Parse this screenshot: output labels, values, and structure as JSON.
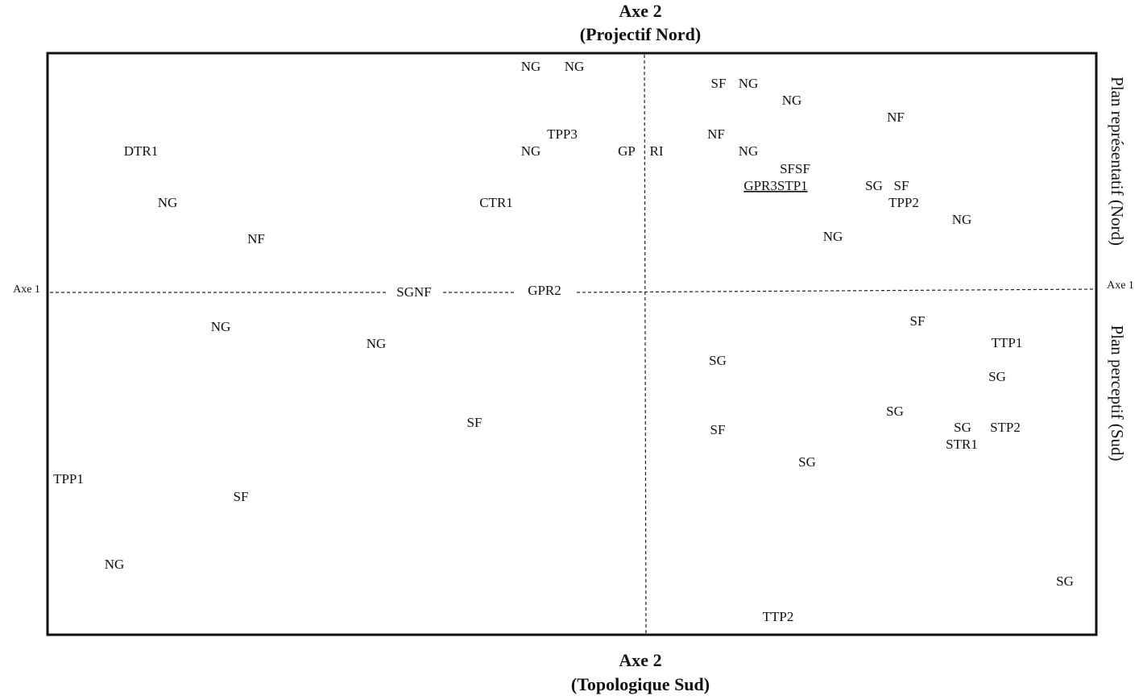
{
  "top_title": [
    "Axe 2",
    "(Projectif Nord)"
  ],
  "bottom_title": [
    "Axe 2",
    "(Topologique Sud)"
  ],
  "axis1_left": "Axe 1",
  "axis1_right": "Axe 1",
  "right_labels": [
    "Plan représentatif (Nord)",
    "Plan perceptif (Sud)"
  ],
  "points": [
    "NG",
    "NG",
    "SF",
    "NG",
    "NG",
    "NF",
    "TPP3",
    "NF",
    "DTR1",
    "NG",
    "GP",
    "RI",
    "NG",
    "SFSF",
    "GPR3STP1",
    "SG",
    "SF",
    "NG",
    "CTR1",
    "TPP2",
    "NG",
    "NF",
    "NG",
    "SGNF",
    "GPR2",
    "SF",
    "NG",
    "NG",
    "TTP1",
    "SG",
    "SG",
    "SG",
    "SF",
    "SG",
    "STP2",
    "SF",
    "STR1",
    "SG",
    "TPP1",
    "SF",
    "NG",
    "SG",
    "TTP2"
  ]
}
